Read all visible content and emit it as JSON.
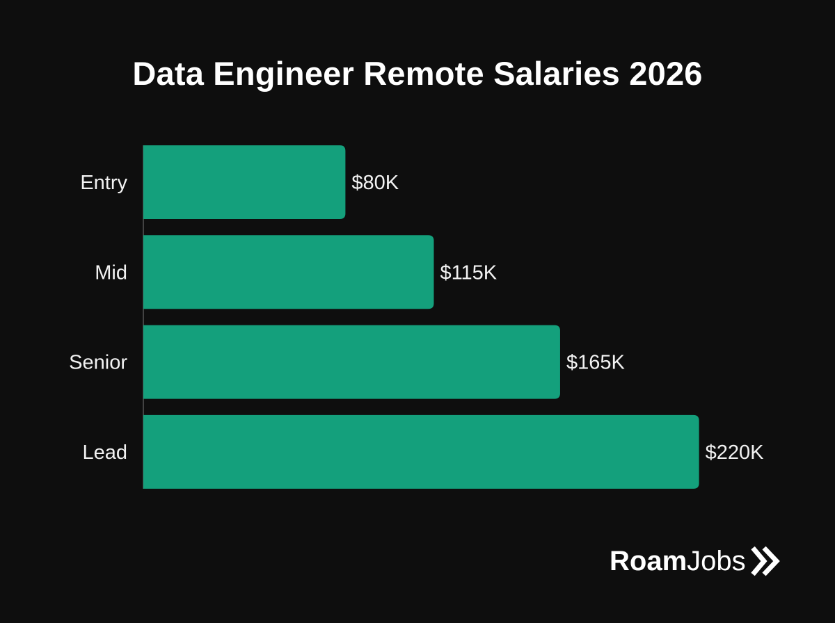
{
  "chart_data": {
    "type": "bar",
    "orientation": "horizontal",
    "title": "Data Engineer Remote Salaries 2026",
    "categories": [
      "Entry",
      "Mid",
      "Senior",
      "Lead"
    ],
    "values": [
      80,
      115,
      165,
      220
    ],
    "value_labels": [
      "$80K",
      "$115K",
      "$165K",
      "$220K"
    ],
    "unit": "thousand USD",
    "xlim": [
      0,
      225
    ],
    "grid": false,
    "legend": "none",
    "bar_color": "#14a07c",
    "background_color": "#0e0e0e"
  },
  "brand": {
    "bold": "Roam",
    "light": "Jobs",
    "icon": "double-chevron-right-icon"
  }
}
